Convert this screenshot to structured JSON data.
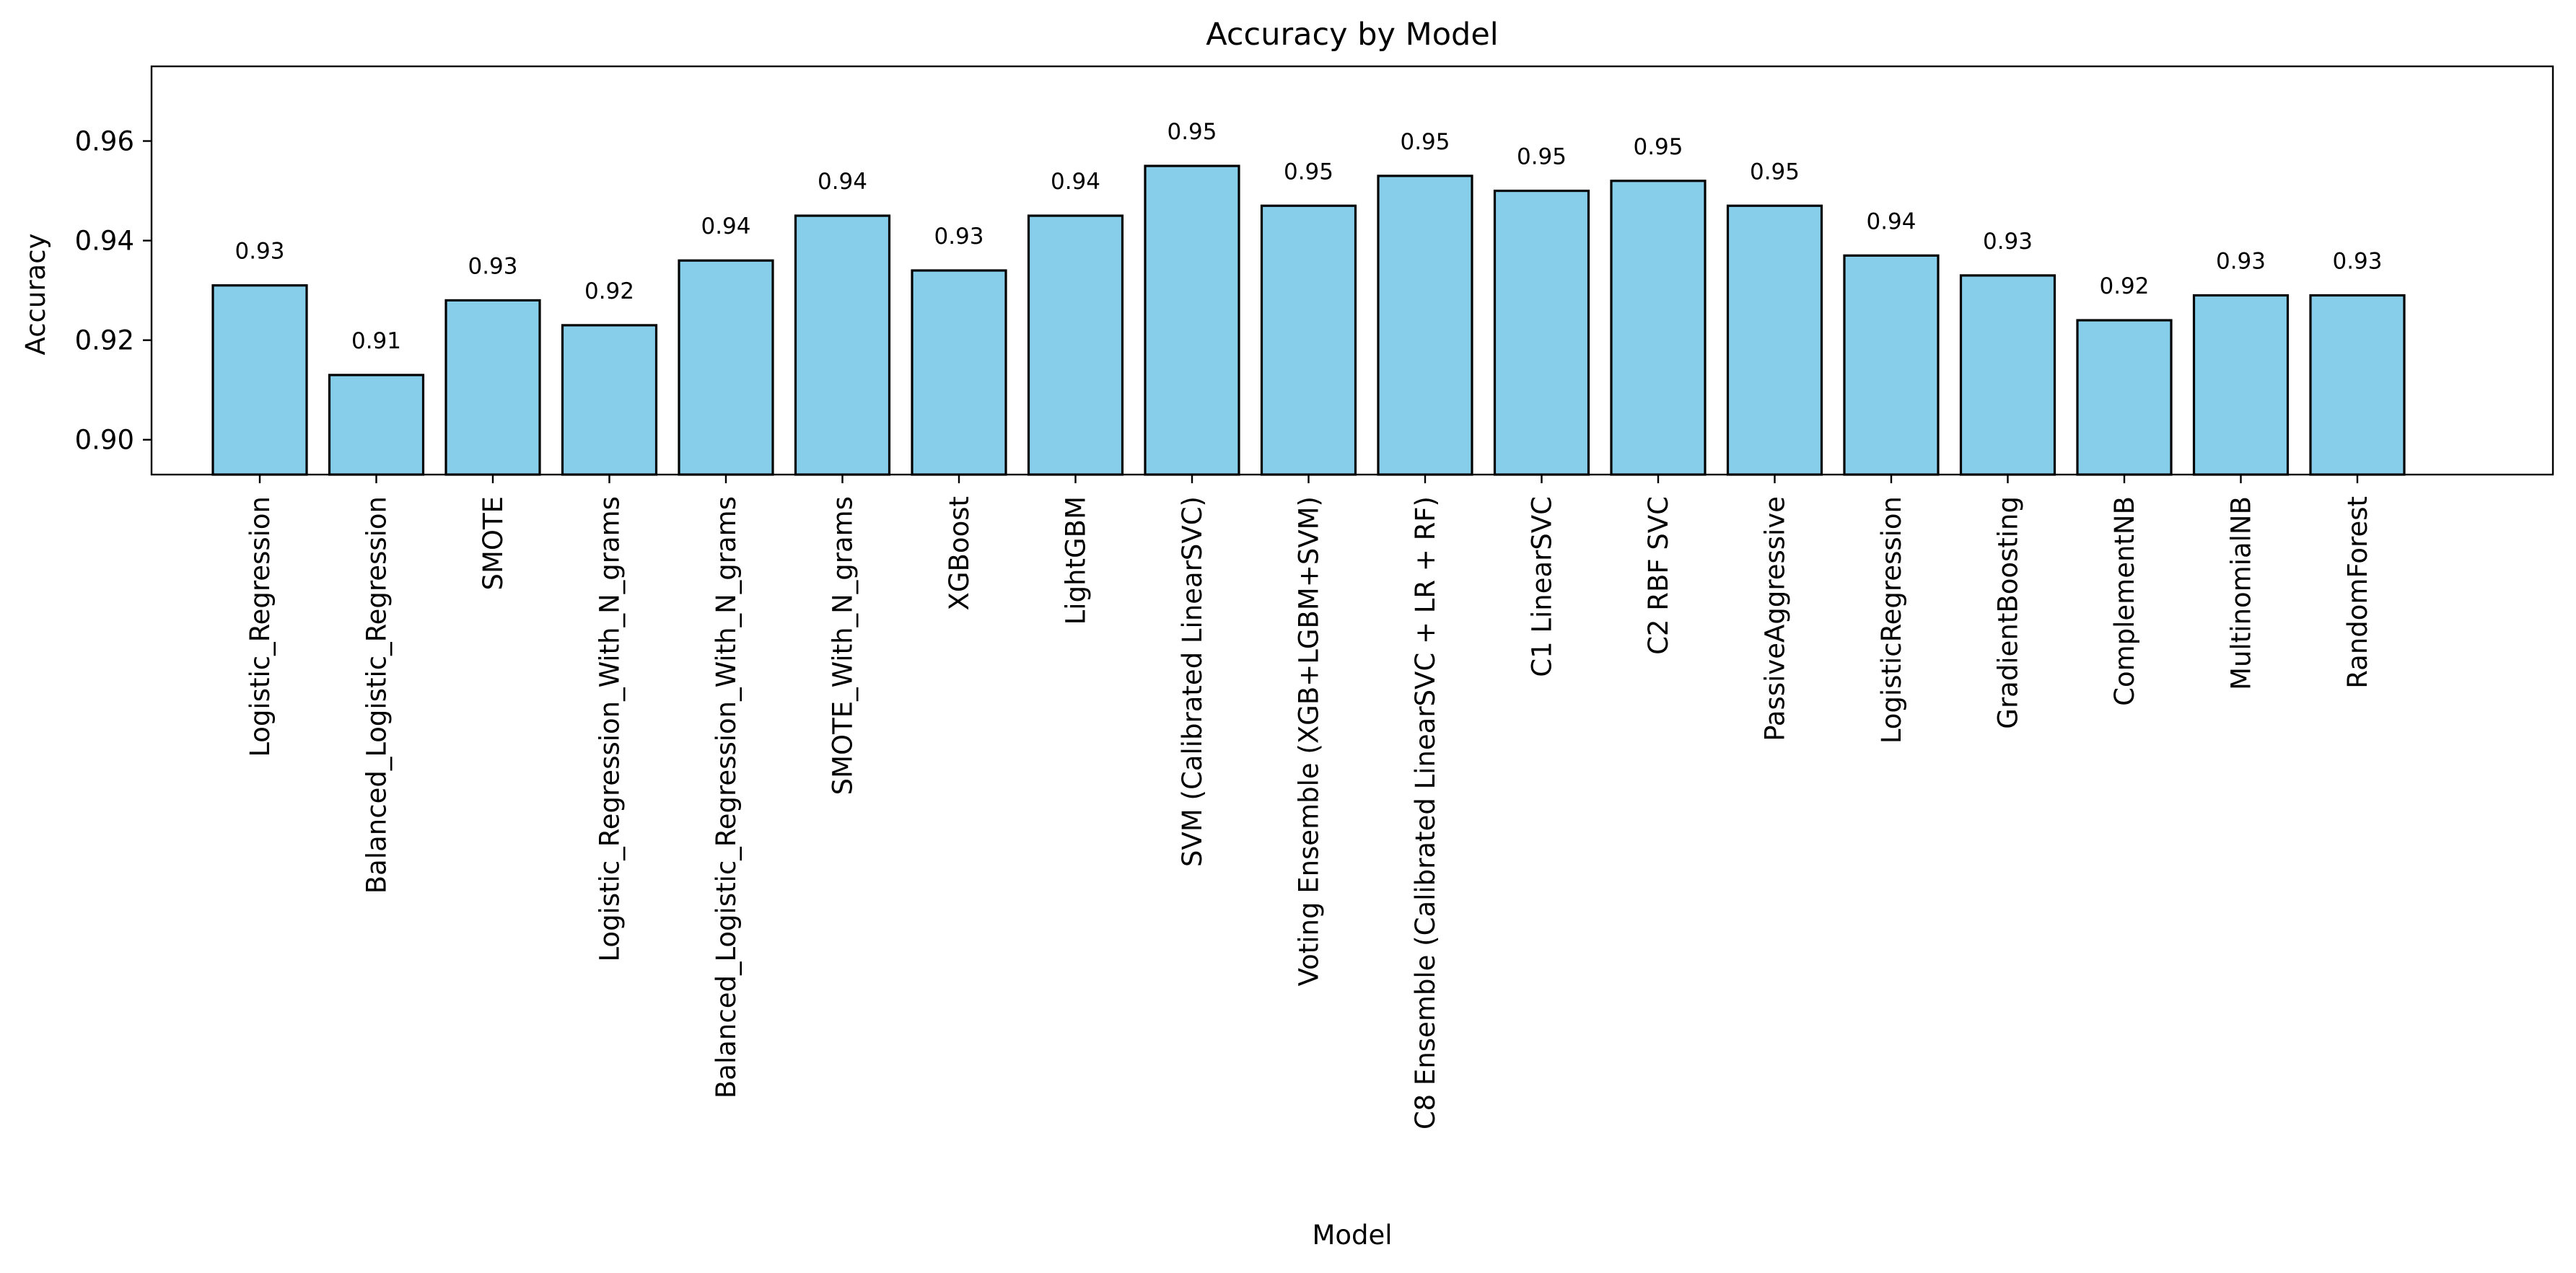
{
  "chart_data": {
    "type": "bar",
    "title": "Accuracy by Model",
    "xlabel": "Model",
    "ylabel": "Accuracy",
    "categories": [
      "Logistic_Regression",
      "Balanced_Logistic_Regression",
      "SMOTE",
      "Logistic_Regression_With_N_grams",
      "Balanced_Logistic_Regression_With_N_grams",
      "SMOTE_With_N_grams",
      "XGBoost",
      "LightGBM",
      "SVM (Calibrated LinearSVC)",
      "Voting Ensemble (XGB+LGBM+SVM)",
      "C8 Ensemble (Calibrated LinearSVC + LR + RF)",
      "C1 LinearSVC",
      "C2 RBF SVC",
      "PassiveAggressive",
      "LogisticRegression",
      "GradientBoosting",
      "ComplementNB",
      "MultinomialNB",
      "RandomForest"
    ],
    "values": [
      0.931,
      0.913,
      0.928,
      0.923,
      0.936,
      0.945,
      0.934,
      0.945,
      0.955,
      0.947,
      0.953,
      0.95,
      0.952,
      0.947,
      0.937,
      0.933,
      0.924,
      0.929,
      0.929
    ],
    "value_labels": [
      "0.93",
      "0.91",
      "0.93",
      "0.92",
      "0.94",
      "0.94",
      "0.93",
      "0.94",
      "0.95",
      "0.95",
      "0.95",
      "0.95",
      "0.95",
      "0.95",
      "0.94",
      "0.93",
      "0.92",
      "0.93",
      "0.93"
    ],
    "ylim": [
      0.893,
      0.975
    ],
    "yticks": [
      0.9,
      0.92,
      0.94,
      0.96
    ],
    "ytick_labels": [
      "0.90",
      "0.92",
      "0.94",
      "0.96"
    ],
    "bar_color": "#87ceeb",
    "edge_color": "#000000",
    "grid": false,
    "legend": "none"
  }
}
